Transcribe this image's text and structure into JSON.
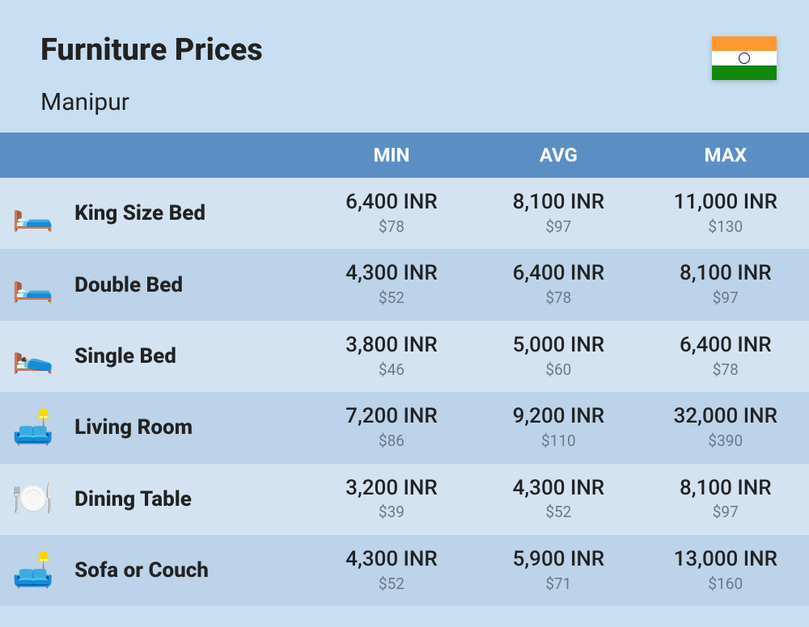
{
  "header": {
    "title": "Furniture Prices",
    "subtitle": "Manipur",
    "flag": {
      "saffron": "#ff9933",
      "white": "#ffffff",
      "green": "#138808",
      "wheel": "#000080"
    }
  },
  "columns": {
    "min": "MIN",
    "avg": "AVG",
    "max": "MAX"
  },
  "rows": [
    {
      "icon": "🛏️",
      "name": "King Size Bed",
      "min_inr": "6,400 INR",
      "min_usd": "$78",
      "avg_inr": "8,100 INR",
      "avg_usd": "$97",
      "max_inr": "11,000 INR",
      "max_usd": "$130"
    },
    {
      "icon": "🛏️",
      "name": "Double Bed",
      "min_inr": "4,300 INR",
      "min_usd": "$52",
      "avg_inr": "6,400 INR",
      "avg_usd": "$78",
      "max_inr": "8,100 INR",
      "max_usd": "$97"
    },
    {
      "icon": "🛌",
      "name": "Single Bed",
      "min_inr": "3,800 INR",
      "min_usd": "$46",
      "avg_inr": "5,000 INR",
      "avg_usd": "$60",
      "max_inr": "6,400 INR",
      "max_usd": "$78"
    },
    {
      "icon": "🛋️",
      "name": "Living Room",
      "min_inr": "7,200 INR",
      "min_usd": "$86",
      "avg_inr": "9,200 INR",
      "avg_usd": "$110",
      "max_inr": "32,000 INR",
      "max_usd": "$390"
    },
    {
      "icon": "🍽️",
      "name": "Dining Table",
      "min_inr": "3,200 INR",
      "min_usd": "$39",
      "avg_inr": "4,300 INR",
      "avg_usd": "$52",
      "max_inr": "8,100 INR",
      "max_usd": "$97"
    },
    {
      "icon": "🛋️",
      "name": "Sofa or Couch",
      "min_inr": "4,300 INR",
      "min_usd": "$52",
      "avg_inr": "5,900 INR",
      "avg_usd": "$71",
      "max_inr": "13,000 INR",
      "max_usd": "$160"
    }
  ],
  "styling": {
    "page_bg": "#c8def2",
    "header_bg": "#5b8fc3",
    "header_text": "#ffffff",
    "row_odd_bg": "#d3e3f2",
    "row_even_bg": "#bcd3e9",
    "title_fontsize": 38,
    "subtitle_fontsize": 30,
    "th_fontsize": 24,
    "name_fontsize": 26,
    "inr_fontsize": 26,
    "usd_fontsize": 19,
    "usd_color": "#6b7a8a",
    "text_color": "#222222"
  }
}
